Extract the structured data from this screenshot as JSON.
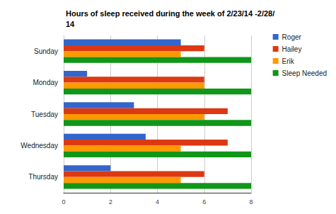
{
  "chart_data": {
    "type": "bar",
    "orientation": "horizontal",
    "title": "Hours of sleep received during the week of 2/23/14 -2/28/14",
    "categories": [
      "Sunday",
      "Monday",
      "Tuesday",
      "Wednesday",
      "Thursday"
    ],
    "series": [
      {
        "name": "Roger",
        "color": "#3366cc",
        "values": [
          5,
          1,
          3,
          3.5,
          2
        ]
      },
      {
        "name": "Hailey",
        "color": "#dc3912",
        "values": [
          6,
          6,
          7,
          7,
          6
        ]
      },
      {
        "name": "Erik",
        "color": "#ff9900",
        "values": [
          5,
          6,
          6,
          5,
          5
        ]
      },
      {
        "name": "Sleep Needed",
        "color": "#109618",
        "values": [
          8,
          8,
          8,
          8,
          8
        ]
      }
    ],
    "xlim": [
      0,
      8
    ],
    "xticks": [
      0,
      2,
      4,
      6,
      8
    ],
    "grid": true,
    "legend": "right"
  }
}
